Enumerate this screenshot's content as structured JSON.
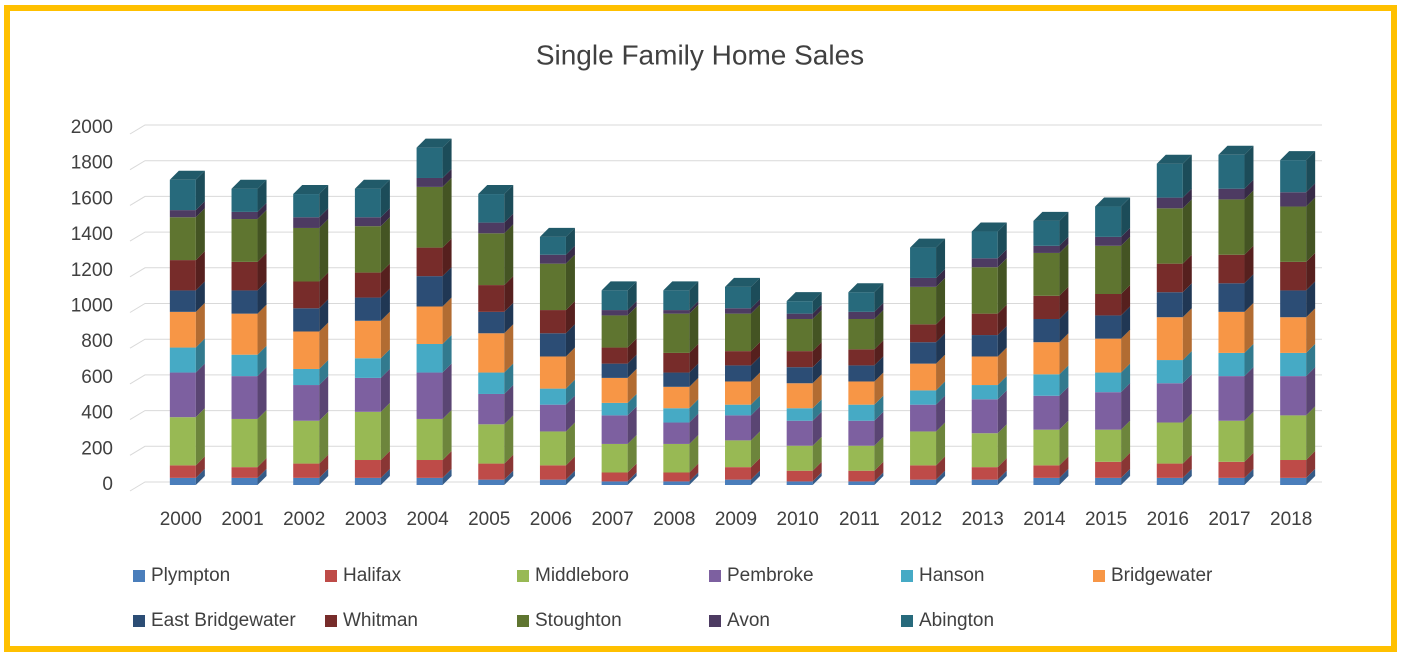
{
  "chart_data": {
    "type": "bar",
    "stacked": true,
    "title": "Single Family Home Sales",
    "categories": [
      "2000",
      "2001",
      "2002",
      "2003",
      "2004",
      "2005",
      "2006",
      "2007",
      "2008",
      "2009",
      "2010",
      "2011",
      "2012",
      "2013",
      "2014",
      "2015",
      "2016",
      "2017",
      "2018"
    ],
    "ylim": [
      0,
      2000
    ],
    "yticks": [
      0,
      200,
      400,
      600,
      800,
      1000,
      1200,
      1400,
      1600,
      1800,
      2000
    ],
    "grid": true,
    "legend": "bottom",
    "series": [
      {
        "name": "Plympton",
        "color": "#4a7ebb",
        "values": [
          40,
          40,
          40,
          40,
          40,
          30,
          30,
          20,
          20,
          30,
          20,
          20,
          30,
          30,
          40,
          40,
          40,
          40,
          40
        ]
      },
      {
        "name": "Halifax",
        "color": "#be4b48",
        "values": [
          70,
          60,
          80,
          100,
          100,
          90,
          80,
          50,
          50,
          70,
          60,
          60,
          80,
          70,
          70,
          90,
          80,
          90,
          100
        ]
      },
      {
        "name": "Middleboro",
        "color": "#98b954",
        "values": [
          270,
          270,
          240,
          270,
          230,
          220,
          190,
          160,
          160,
          150,
          140,
          140,
          190,
          190,
          200,
          180,
          230,
          230,
          250
        ]
      },
      {
        "name": "Pembroke",
        "color": "#7d60a0",
        "values": [
          250,
          240,
          200,
          190,
          260,
          170,
          150,
          160,
          120,
          140,
          140,
          140,
          150,
          190,
          190,
          210,
          220,
          250,
          220
        ]
      },
      {
        "name": "Hanson",
        "color": "#46aac5",
        "values": [
          140,
          120,
          90,
          110,
          160,
          120,
          90,
          70,
          80,
          60,
          70,
          90,
          80,
          80,
          120,
          110,
          130,
          130,
          130
        ]
      },
      {
        "name": "Bridgewater",
        "color": "#f79646",
        "values": [
          200,
          230,
          210,
          210,
          210,
          220,
          180,
          140,
          120,
          130,
          140,
          130,
          150,
          160,
          180,
          190,
          240,
          230,
          200
        ]
      },
      {
        "name": "East Bridgewater",
        "color": "#2c4d75",
        "values": [
          120,
          130,
          130,
          130,
          170,
          120,
          130,
          80,
          80,
          90,
          90,
          90,
          120,
          120,
          130,
          130,
          140,
          160,
          150
        ]
      },
      {
        "name": "Whitman",
        "color": "#772c2a",
        "values": [
          170,
          160,
          150,
          140,
          160,
          150,
          130,
          90,
          110,
          80,
          90,
          90,
          100,
          120,
          130,
          120,
          160,
          160,
          160
        ]
      },
      {
        "name": "Stoughton",
        "color": "#5f7530",
        "values": [
          240,
          240,
          300,
          260,
          340,
          290,
          260,
          180,
          220,
          210,
          180,
          170,
          210,
          260,
          240,
          270,
          310,
          310,
          310
        ]
      },
      {
        "name": "Avon",
        "color": "#4d3b62",
        "values": [
          40,
          40,
          60,
          50,
          50,
          60,
          50,
          30,
          20,
          30,
          30,
          40,
          50,
          50,
          40,
          50,
          60,
          60,
          80
        ]
      },
      {
        "name": "Abington",
        "color": "#276a7c",
        "values": [
          170,
          130,
          130,
          160,
          170,
          160,
          100,
          110,
          110,
          120,
          70,
          110,
          170,
          150,
          140,
          170,
          190,
          190,
          180
        ]
      }
    ]
  }
}
